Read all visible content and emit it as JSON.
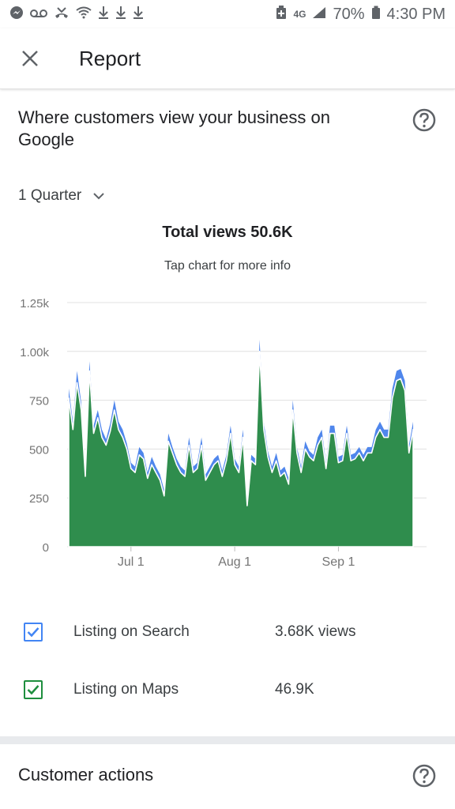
{
  "status_bar": {
    "battery": "70%",
    "time": "4:30 PM",
    "network": "4G"
  },
  "app_bar": {
    "title": "Report"
  },
  "card": {
    "title": "Where customers view your business on Google",
    "period": "1 Quarter",
    "total_views": "Total views 50.6K",
    "tap_hint": "Tap chart for more info"
  },
  "legend": [
    {
      "label": "Listing on Search",
      "value": "3.68K views",
      "color": "#4285f4",
      "checked": true
    },
    {
      "label": "Listing on Maps",
      "value": "46.9K",
      "color": "#1e8e3e",
      "checked": true
    }
  ],
  "next_section": {
    "title": "Customer actions"
  },
  "colors": {
    "search": "#4f86ec",
    "maps": "#2f8d4d",
    "grid": "#e0e0e0",
    "axis_text": "#757575"
  },
  "chart_data": {
    "type": "area",
    "stacked": true,
    "y_ticks": [
      "0",
      "250",
      "500",
      "750",
      "1.00k",
      "1.25k"
    ],
    "y_tick_values": [
      0,
      250,
      500,
      750,
      1000,
      1250
    ],
    "ylim": [
      0,
      1250
    ],
    "x_tick_labels": [
      "Jul 1",
      "Aug 1",
      "Sep 1"
    ],
    "x_tick_index": [
      15,
      40,
      65
    ],
    "grid": true,
    "series": [
      {
        "name": "Listing on Maps",
        "values": [
          760,
          600,
          840,
          700,
          360,
          900,
          580,
          660,
          560,
          520,
          590,
          700,
          600,
          560,
          500,
          400,
          380,
          470,
          450,
          350,
          420,
          380,
          340,
          260,
          540,
          480,
          420,
          380,
          360,
          520,
          380,
          400,
          520,
          340,
          380,
          420,
          440,
          360,
          440,
          580,
          420,
          380,
          560,
          210,
          440,
          420,
          1000,
          600,
          460,
          380,
          440,
          360,
          380,
          320,
          700,
          480,
          380,
          500,
          460,
          440,
          520,
          560,
          400,
          580,
          580,
          430,
          440,
          580,
          440,
          450,
          480,
          440,
          480,
          480,
          560,
          600,
          560,
          560,
          760,
          850,
          860,
          800,
          480,
          600
        ]
      },
      {
        "name": "Listing on Search",
        "values": [
          50,
          40,
          60,
          40,
          30,
          50,
          40,
          40,
          40,
          30,
          40,
          50,
          40,
          40,
          30,
          30,
          30,
          40,
          30,
          30,
          40,
          30,
          30,
          30,
          40,
          30,
          30,
          30,
          30,
          40,
          30,
          30,
          40,
          30,
          30,
          30,
          30,
          30,
          30,
          40,
          30,
          30,
          40,
          20,
          30,
          30,
          60,
          40,
          30,
          30,
          40,
          30,
          30,
          30,
          50,
          30,
          30,
          40,
          30,
          30,
          40,
          40,
          30,
          40,
          40,
          30,
          30,
          40,
          30,
          30,
          30,
          30,
          30,
          30,
          40,
          40,
          40,
          40,
          50,
          50,
          50,
          50,
          40,
          40
        ]
      }
    ]
  }
}
